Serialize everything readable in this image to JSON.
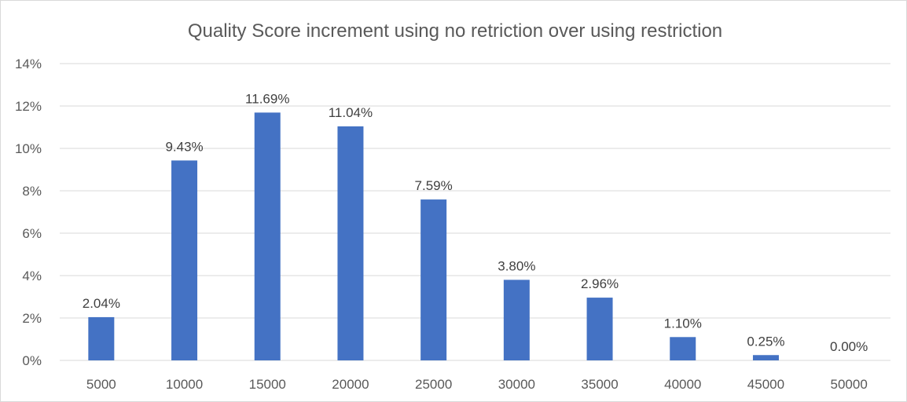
{
  "chart_data": {
    "type": "bar",
    "title": "Quality Score increment using no retriction over using restriction",
    "xlabel": "",
    "ylabel": "",
    "categories": [
      "5000",
      "10000",
      "15000",
      "20000",
      "25000",
      "30000",
      "35000",
      "40000",
      "45000",
      "50000"
    ],
    "values": [
      2.04,
      9.43,
      11.69,
      11.04,
      7.59,
      3.8,
      2.96,
      1.1,
      0.25,
      0.0
    ],
    "data_labels": [
      "2.04%",
      "9.43%",
      "11.69%",
      "11.04%",
      "7.59%",
      "3.80%",
      "2.96%",
      "1.10%",
      "0.25%",
      "0.00%"
    ],
    "ylim": [
      0,
      14
    ],
    "y_ticks": [
      0,
      2,
      4,
      6,
      8,
      10,
      12,
      14
    ],
    "y_tick_labels": [
      "0%",
      "2%",
      "4%",
      "6%",
      "8%",
      "10%",
      "12%",
      "14%"
    ],
    "grid": true,
    "legend": "none",
    "bar_color": "#4472c4",
    "gridline_color": "#d9d9d9",
    "text_color": "#595959"
  }
}
